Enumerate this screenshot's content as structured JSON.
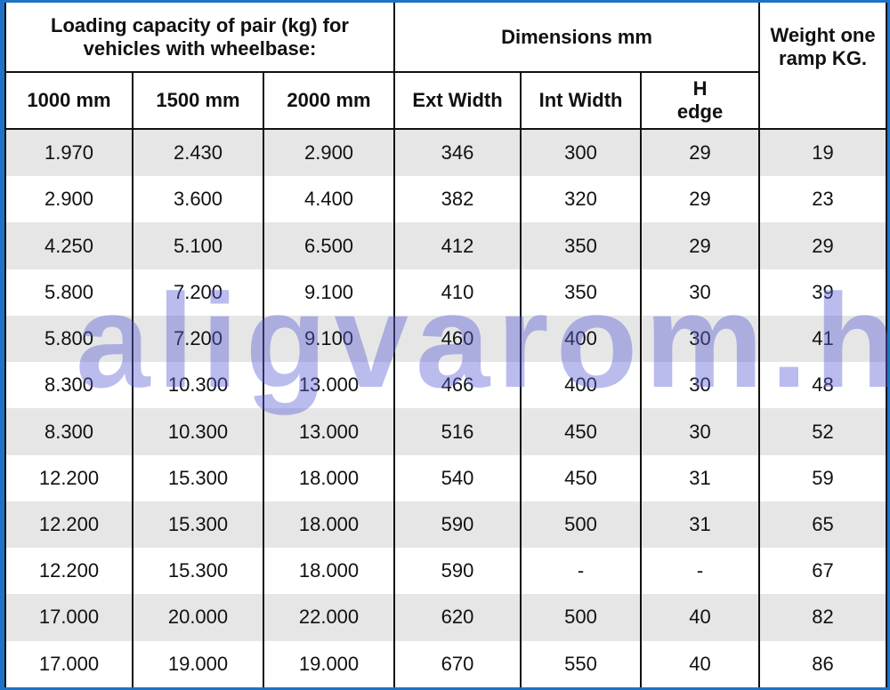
{
  "header": {
    "capacity_group": "Loading capacity of pair (kg) for vehicles with wheelbase:",
    "dimensions_group": "Dimensions mm",
    "weight": "Weight one ramp KG.",
    "columns": [
      "1000 mm",
      "1500 mm",
      "2000 mm",
      "Ext Width",
      "Int Width",
      "H edge"
    ]
  },
  "rows": [
    [
      "1.970",
      "2.430",
      "2.900",
      "346",
      "300",
      "29",
      "19"
    ],
    [
      "2.900",
      "3.600",
      "4.400",
      "382",
      "320",
      "29",
      "23"
    ],
    [
      "4.250",
      "5.100",
      "6.500",
      "412",
      "350",
      "29",
      "29"
    ],
    [
      "5.800",
      "7.200",
      "9.100",
      "410",
      "350",
      "30",
      "39"
    ],
    [
      "5.800",
      "7.200",
      "9.100",
      "460",
      "400",
      "30",
      "41"
    ],
    [
      "8.300",
      "10.300",
      "13.000",
      "466",
      "400",
      "30",
      "48"
    ],
    [
      "8.300",
      "10.300",
      "13.000",
      "516",
      "450",
      "30",
      "52"
    ],
    [
      "12.200",
      "15.300",
      "18.000",
      "540",
      "450",
      "31",
      "59"
    ],
    [
      "12.200",
      "15.300",
      "18.000",
      "590",
      "500",
      "31",
      "65"
    ],
    [
      "12.200",
      "15.300",
      "18.000",
      "590",
      "-",
      "-",
      "67"
    ],
    [
      "17.000",
      "20.000",
      "22.000",
      "620",
      "500",
      "40",
      "82"
    ],
    [
      "17.000",
      "19.000",
      "19.000",
      "670",
      "550",
      "40",
      "86"
    ]
  ],
  "watermark": "aligvarom.hu",
  "colors": {
    "border": "#1f73c6",
    "row_shade": "#e6e6e6",
    "watermark": "#5a5fd7"
  }
}
